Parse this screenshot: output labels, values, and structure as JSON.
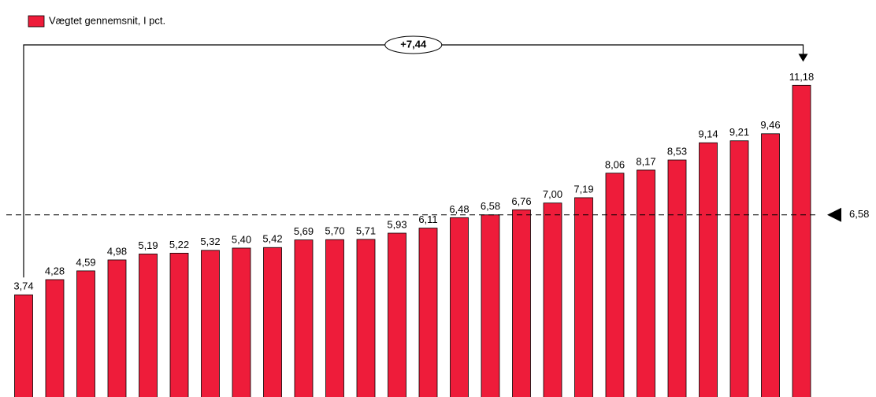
{
  "chart_data": {
    "type": "bar",
    "legend": "Vægtet gennemsnit, I pct.",
    "color": "#ee1c3a",
    "values": [
      3.74,
      4.28,
      4.59,
      4.98,
      5.19,
      5.22,
      5.32,
      5.4,
      5.42,
      5.69,
      5.7,
      5.71,
      5.93,
      6.11,
      6.48,
      6.58,
      6.76,
      7.0,
      7.19,
      8.06,
      8.17,
      8.53,
      9.14,
      9.21,
      9.46,
      11.18
    ],
    "value_labels": [
      "3,74",
      "4,28",
      "4,59",
      "4,98",
      "5,19",
      "5,22",
      "5,32",
      "5,40",
      "5,42",
      "5,69",
      "5,70",
      "5,71",
      "5,93",
      "6,11",
      "6,48",
      "6,58",
      "6,76",
      "7,00",
      "7,19",
      "8,06",
      "8,17",
      "8,53",
      "9,14",
      "9,21",
      "9,46",
      "11,18"
    ],
    "average": {
      "value": 6.58,
      "label": "6,58"
    },
    "difference": {
      "value": 7.44,
      "label": "+7,44"
    }
  }
}
